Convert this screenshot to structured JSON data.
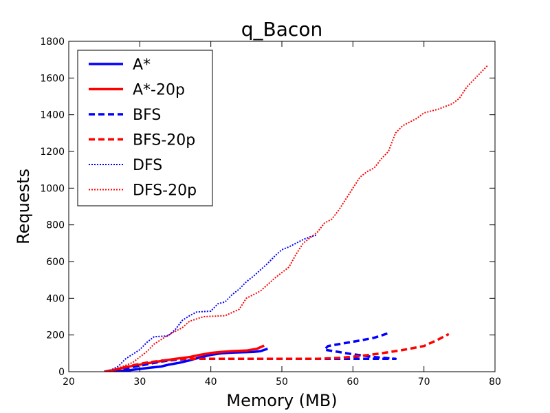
{
  "chart_data": {
    "type": "line",
    "title": "q_Bacon",
    "xlabel": "Memory (MB)",
    "ylabel": "Requests",
    "xlim": [
      20,
      80
    ],
    "ylim": [
      0,
      1800
    ],
    "xticks": [
      20,
      30,
      40,
      50,
      60,
      70,
      80
    ],
    "yticks": [
      0,
      200,
      400,
      600,
      800,
      1000,
      1200,
      1400,
      1600,
      1800
    ],
    "grid": false,
    "legend_position": "top-left",
    "series": [
      {
        "name": "A*",
        "color": "#0000ff",
        "style": "solid",
        "points": [
          [
            25,
            0
          ],
          [
            27,
            3
          ],
          [
            28.5,
            8
          ],
          [
            30,
            15
          ],
          [
            31.5,
            22
          ],
          [
            33,
            28
          ],
          [
            34,
            38
          ],
          [
            35.5,
            48
          ],
          [
            37,
            62
          ],
          [
            38.5,
            78
          ],
          [
            40,
            92
          ],
          [
            41.5,
            100
          ],
          [
            43,
            104
          ],
          [
            44.5,
            106
          ],
          [
            46,
            108
          ],
          [
            47,
            112
          ],
          [
            48,
            125
          ]
        ]
      },
      {
        "name": "A*-20p",
        "color": "#ff0000",
        "style": "solid",
        "points": [
          [
            25,
            0
          ],
          [
            26.5,
            10
          ],
          [
            28,
            25
          ],
          [
            29.5,
            35
          ],
          [
            31,
            45
          ],
          [
            33,
            58
          ],
          [
            35,
            70
          ],
          [
            37,
            80
          ],
          [
            38.5,
            92
          ],
          [
            40,
            102
          ],
          [
            41.5,
            108
          ],
          [
            43,
            112
          ],
          [
            45,
            115
          ],
          [
            46.5,
            125
          ],
          [
            47.5,
            142
          ]
        ]
      },
      {
        "name": "BFS",
        "color": "#0000ff",
        "style": "dashed",
        "points": [
          [
            25,
            0
          ],
          [
            27,
            10
          ],
          [
            29,
            25
          ],
          [
            31,
            40
          ],
          [
            33,
            55
          ],
          [
            35,
            65
          ],
          [
            37,
            70
          ],
          [
            45,
            70
          ],
          [
            55,
            70
          ],
          [
            60,
            70
          ],
          [
            66,
            70
          ],
          [
            63,
            80
          ],
          [
            60,
            95
          ],
          [
            56,
            120
          ],
          [
            56.5,
            140
          ],
          [
            58,
            150
          ],
          [
            61,
            170
          ],
          [
            63,
            185
          ],
          [
            65,
            210
          ]
        ]
      },
      {
        "name": "BFS-20p",
        "color": "#ff0000",
        "style": "dashed",
        "points": [
          [
            25,
            0
          ],
          [
            27,
            15
          ],
          [
            29,
            35
          ],
          [
            31,
            50
          ],
          [
            33,
            60
          ],
          [
            35,
            68
          ],
          [
            37,
            70
          ],
          [
            45,
            70
          ],
          [
            55,
            70
          ],
          [
            58,
            75
          ],
          [
            61,
            85
          ],
          [
            64,
            100
          ],
          [
            67,
            118
          ],
          [
            70,
            140
          ],
          [
            72,
            175
          ],
          [
            73.5,
            205
          ]
        ]
      },
      {
        "name": "DFS",
        "color": "#0000ff",
        "style": "dotted",
        "points": [
          [
            25,
            0
          ],
          [
            26,
            10
          ],
          [
            27,
            30
          ],
          [
            28,
            70
          ],
          [
            30,
            120
          ],
          [
            31,
            160
          ],
          [
            32,
            190
          ],
          [
            34,
            195
          ],
          [
            35,
            230
          ],
          [
            36,
            280
          ],
          [
            37,
            305
          ],
          [
            38,
            325
          ],
          [
            40,
            330
          ],
          [
            41,
            370
          ],
          [
            42,
            380
          ],
          [
            43,
            420
          ],
          [
            44,
            450
          ],
          [
            45,
            490
          ],
          [
            46,
            520
          ],
          [
            47,
            555
          ],
          [
            48,
            590
          ],
          [
            49,
            630
          ],
          [
            50,
            665
          ],
          [
            51,
            680
          ],
          [
            52,
            700
          ],
          [
            53,
            720
          ],
          [
            54,
            735
          ],
          [
            55,
            745
          ]
        ]
      },
      {
        "name": "DFS-20p",
        "color": "#ff0000",
        "style": "dotted",
        "points": [
          [
            25,
            0
          ],
          [
            26,
            8
          ],
          [
            27,
            20
          ],
          [
            28,
            35
          ],
          [
            29,
            50
          ],
          [
            30,
            80
          ],
          [
            31,
            110
          ],
          [
            32,
            150
          ],
          [
            34,
            200
          ],
          [
            36,
            240
          ],
          [
            37,
            275
          ],
          [
            39,
            300
          ],
          [
            42,
            305
          ],
          [
            44,
            340
          ],
          [
            45,
            400
          ],
          [
            47,
            440
          ],
          [
            49,
            510
          ],
          [
            51,
            570
          ],
          [
            52,
            640
          ],
          [
            53,
            700
          ],
          [
            54,
            730
          ],
          [
            55,
            760
          ],
          [
            56,
            810
          ],
          [
            57,
            830
          ],
          [
            58,
            880
          ],
          [
            59,
            940
          ],
          [
            60,
            1000
          ],
          [
            61,
            1060
          ],
          [
            62,
            1090
          ],
          [
            63,
            1110
          ],
          [
            64,
            1160
          ],
          [
            65,
            1200
          ],
          [
            66,
            1300
          ],
          [
            67,
            1340
          ],
          [
            68,
            1360
          ],
          [
            69,
            1380
          ],
          [
            70,
            1410
          ],
          [
            72,
            1430
          ],
          [
            74,
            1460
          ],
          [
            75,
            1490
          ],
          [
            76,
            1550
          ],
          [
            77,
            1590
          ],
          [
            78,
            1630
          ],
          [
            79,
            1670
          ]
        ]
      }
    ]
  }
}
